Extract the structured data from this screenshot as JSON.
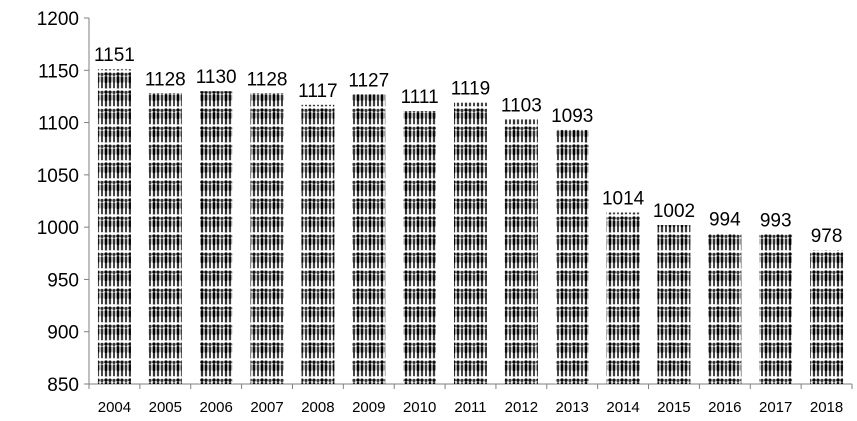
{
  "chart_data": {
    "type": "bar",
    "categories": [
      "2004",
      "2005",
      "2006",
      "2007",
      "2008",
      "2009",
      "2010",
      "2011",
      "2012",
      "2013",
      "2014",
      "2015",
      "2016",
      "2017",
      "2018"
    ],
    "values": [
      1151,
      1128,
      1130,
      1128,
      1117,
      1127,
      1111,
      1119,
      1103,
      1093,
      1014,
      1002,
      994,
      993,
      978
    ],
    "ylim": [
      850,
      1200
    ],
    "yticks": [
      850,
      900,
      950,
      1000,
      1050,
      1100,
      1150,
      1200
    ],
    "title": "",
    "xlabel": "",
    "ylabel": "",
    "grid": false,
    "bar_style": "pictograph-people",
    "colors": {
      "bar": "#111111",
      "axis": "#7f7f7f",
      "text": "#000000"
    }
  }
}
